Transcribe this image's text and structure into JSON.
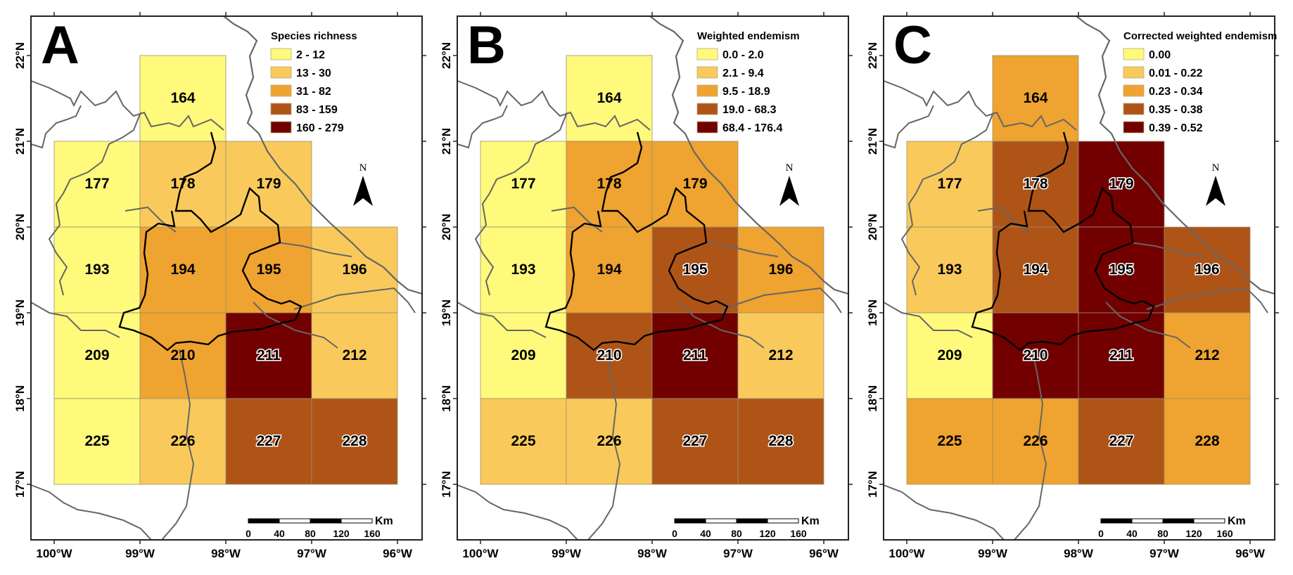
{
  "class_colors": [
    "#FFFA7C",
    "#F9CA5B",
    "#EFA330",
    "#AF5417",
    "#720000"
  ],
  "axes": {
    "lon_labels": [
      "100°W",
      "99°W",
      "98°W",
      "97°W",
      "96°W"
    ],
    "lat_labels": [
      "22°N",
      "21°N",
      "20°N",
      "19°N",
      "18°N",
      "17°N"
    ]
  },
  "north_label": "N",
  "scale_bar": {
    "unit": "Km",
    "ticks": [
      "0",
      "40",
      "80",
      "120",
      "160"
    ]
  },
  "cells": [
    {
      "id": "164",
      "row": 0,
      "col": 1
    },
    {
      "id": "177",
      "row": 1,
      "col": 0
    },
    {
      "id": "178",
      "row": 1,
      "col": 1
    },
    {
      "id": "179",
      "row": 1,
      "col": 2
    },
    {
      "id": "193",
      "row": 2,
      "col": 0
    },
    {
      "id": "194",
      "row": 2,
      "col": 1
    },
    {
      "id": "195",
      "row": 2,
      "col": 2
    },
    {
      "id": "196",
      "row": 2,
      "col": 3
    },
    {
      "id": "209",
      "row": 3,
      "col": 0
    },
    {
      "id": "210",
      "row": 3,
      "col": 1
    },
    {
      "id": "211",
      "row": 3,
      "col": 2
    },
    {
      "id": "212",
      "row": 3,
      "col": 3
    },
    {
      "id": "225",
      "row": 4,
      "col": 0
    },
    {
      "id": "226",
      "row": 4,
      "col": 1
    },
    {
      "id": "227",
      "row": 4,
      "col": 2
    },
    {
      "id": "228",
      "row": 4,
      "col": 3
    }
  ],
  "panels": [
    {
      "letter": "A",
      "legend_title": "Species richness",
      "legend": [
        "2 - 12",
        "13 - 30",
        "31 - 82",
        "83 - 159",
        "160 - 279"
      ],
      "classes": {
        "164": 1,
        "177": 1,
        "178": 2,
        "179": 2,
        "193": 1,
        "194": 3,
        "195": 3,
        "196": 2,
        "209": 1,
        "210": 3,
        "211": 5,
        "212": 2,
        "225": 1,
        "226": 2,
        "227": 4,
        "228": 4
      }
    },
    {
      "letter": "B",
      "legend_title": "Weighted endemism",
      "legend": [
        "0.0 - 2.0",
        "2.1 - 9.4",
        "9.5 - 18.9",
        "19.0 - 68.3",
        "68.4 - 176.4"
      ],
      "classes": {
        "164": 1,
        "177": 1,
        "178": 3,
        "179": 3,
        "193": 1,
        "194": 3,
        "195": 4,
        "196": 3,
        "209": 1,
        "210": 4,
        "211": 5,
        "212": 2,
        "225": 2,
        "226": 2,
        "227": 4,
        "228": 4
      }
    },
    {
      "letter": "C",
      "legend_title": "Corrected weighted endemism",
      "legend": [
        "0.00",
        "0.01 - 0.22",
        "0.23 - 0.34",
        "0.35 - 0.38",
        "0.39 - 0.52"
      ],
      "classes": {
        "164": 3,
        "177": 2,
        "178": 4,
        "179": 5,
        "193": 2,
        "194": 4,
        "195": 5,
        "196": 4,
        "209": 1,
        "210": 5,
        "211": 5,
        "212": 3,
        "225": 3,
        "226": 3,
        "227": 4,
        "228": 3
      }
    }
  ]
}
